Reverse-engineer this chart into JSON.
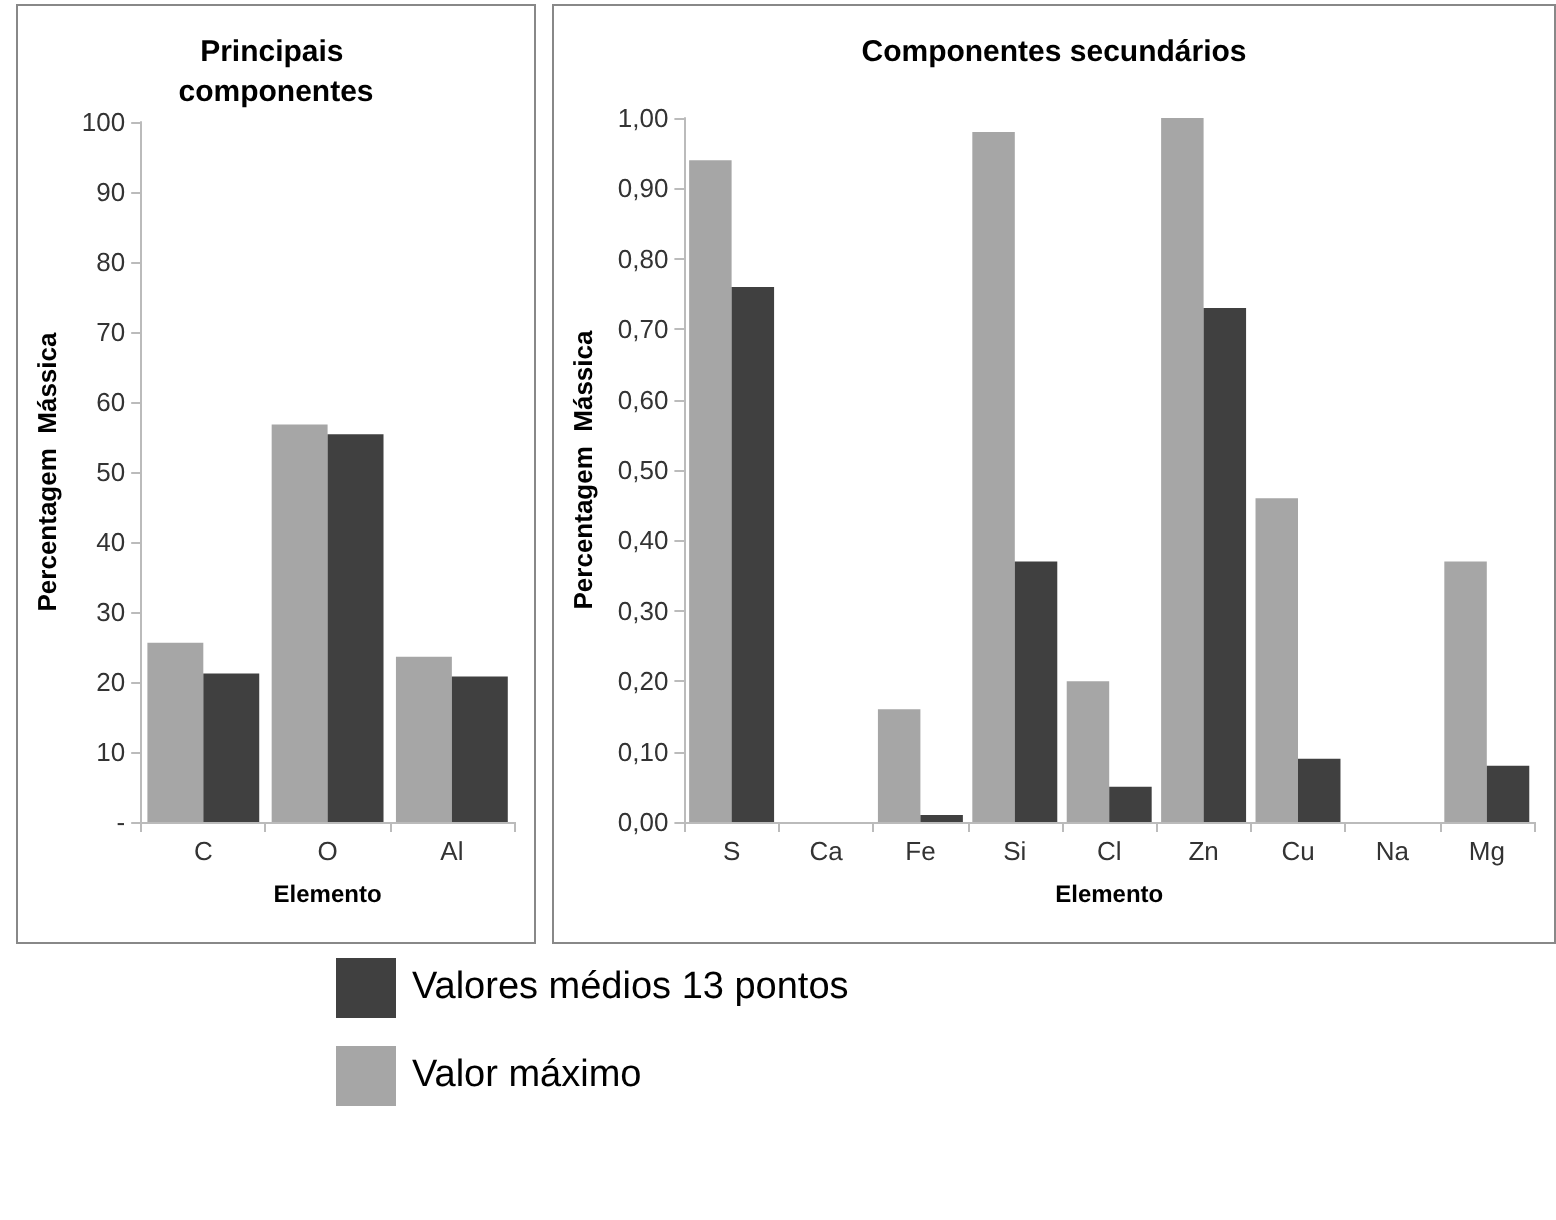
{
  "chart_data": [
    {
      "type": "bar",
      "title": "Principais componentes",
      "xlabel": "Elemento",
      "ylabel": "Percentagem  Mássica",
      "categories": [
        "C",
        "O",
        "Al"
      ],
      "series": [
        {
          "name": "Valor máximo",
          "color": "#a6a6a6",
          "values": [
            25.6,
            56.8,
            23.6
          ]
        },
        {
          "name": "Valores médios 13 pontos",
          "color": "#404040",
          "values": [
            21.2,
            55.4,
            20.8
          ]
        }
      ],
      "ylim": [
        0,
        100
      ],
      "yticks": [
        {
          "value": 0,
          "label": "-"
        },
        10,
        20,
        30,
        40,
        50,
        60,
        70,
        80,
        90,
        100
      ],
      "grid": false,
      "legend": "bottom"
    },
    {
      "type": "bar",
      "title": "Componentes secundários",
      "xlabel": "Elemento",
      "ylabel": "Percentagem  Mássica",
      "categories": [
        "S",
        "Ca",
        "Fe",
        "Si",
        "Cl",
        "Zn",
        "Cu",
        "Na",
        "Mg"
      ],
      "series": [
        {
          "color": "#a6a6a6",
          "values": [
            0.94,
            0,
            0.16,
            0.98,
            0.2,
            1.0,
            0.46,
            0,
            0.37
          ]
        },
        {
          "color": "#404040",
          "values": [
            0.76,
            0,
            0.01,
            0.37,
            0.05,
            0.73,
            0.09,
            0,
            0.08
          ]
        }
      ],
      "ylim": [
        0,
        1
      ],
      "yticks": [
        {
          "value": 0,
          "label": "0,00"
        },
        {
          "value": 0.1,
          "label": "0,10"
        },
        {
          "value": 0.2,
          "label": "0,20"
        },
        {
          "value": 0.3,
          "label": "0,30"
        },
        {
          "value": 0.4,
          "label": "0,40"
        },
        {
          "value": 0.5,
          "label": "0,50"
        },
        {
          "value": 0.6,
          "label": "0,60"
        },
        {
          "value": 0.7,
          "label": "0,70"
        },
        {
          "value": 0.8,
          "label": "0,80"
        },
        {
          "value": 0.9,
          "label": "0,90"
        },
        {
          "value": 1,
          "label": "1,00"
        }
      ],
      "grid": false
    }
  ]
}
